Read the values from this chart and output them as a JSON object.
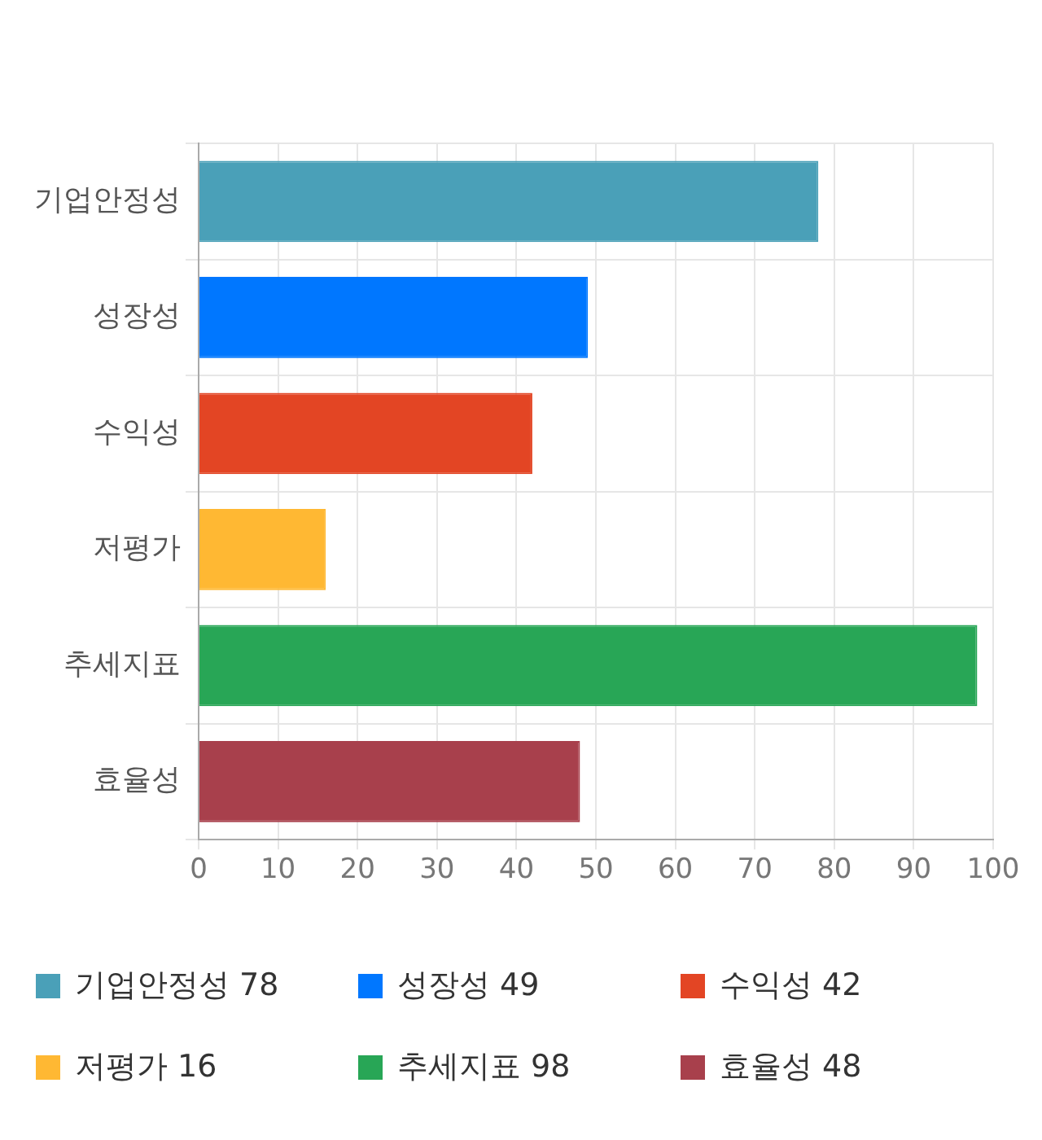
{
  "chart_data": {
    "type": "bar",
    "orientation": "horizontal",
    "categories": [
      "기업안정성",
      "성장성",
      "수익성",
      "저평가",
      "추세지표",
      "효율성"
    ],
    "values": [
      78,
      49,
      42,
      16,
      98,
      48
    ],
    "value_labels": [
      "78",
      "49",
      "42",
      "16",
      "98",
      "48"
    ],
    "colors": [
      "#4aa0b8",
      "#0077ff",
      "#e34524",
      "#ffb833",
      "#28a656",
      "#a8404c"
    ],
    "xlim": [
      0,
      100
    ],
    "xticks": [
      0,
      10,
      20,
      30,
      40,
      50,
      60,
      70,
      80,
      90,
      100
    ],
    "grid": true
  }
}
